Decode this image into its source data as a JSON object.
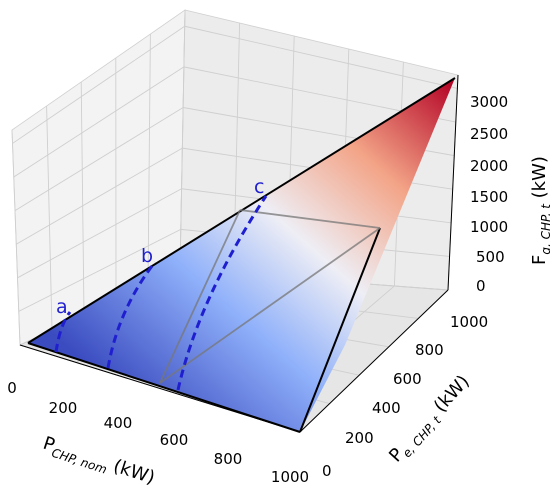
{
  "chart_data": {
    "type": "surface",
    "axes": {
      "x": {
        "label_main": "P",
        "label_sub": "CHP, nom",
        "label_unit": " (kW)",
        "range": [
          0,
          1000
        ],
        "ticks": [
          "0",
          "200",
          "400",
          "600",
          "800",
          "1000"
        ]
      },
      "y": {
        "label_main": "P",
        "label_sub": "e, CHP, t",
        "label_unit": " (kW)",
        "range": [
          0,
          1000
        ],
        "ticks": [
          "0",
          "200",
          "400",
          "600",
          "800",
          "1000"
        ]
      },
      "z": {
        "label_main": "F",
        "label_sub": "g, CHP, t",
        "label_unit": " (kW)",
        "range": [
          0,
          3200
        ],
        "ticks": [
          "0",
          "500",
          "1000",
          "1500",
          "2000",
          "2500",
          "3000"
        ]
      }
    },
    "surface": {
      "colormap": "coolwarm",
      "colors": [
        "#3b4cc0",
        "#b2ccfb",
        "#f2f0ef",
        "#f5a889",
        "#b40426"
      ]
    },
    "curves": [
      {
        "label": "a",
        "color": "#1f1fd0",
        "style": "dashed"
      },
      {
        "label": "b",
        "color": "#1f1fd0",
        "style": "dashed"
      },
      {
        "label": "c",
        "color": "#1f1fd0",
        "style": "dashed"
      }
    ],
    "grid": true
  }
}
